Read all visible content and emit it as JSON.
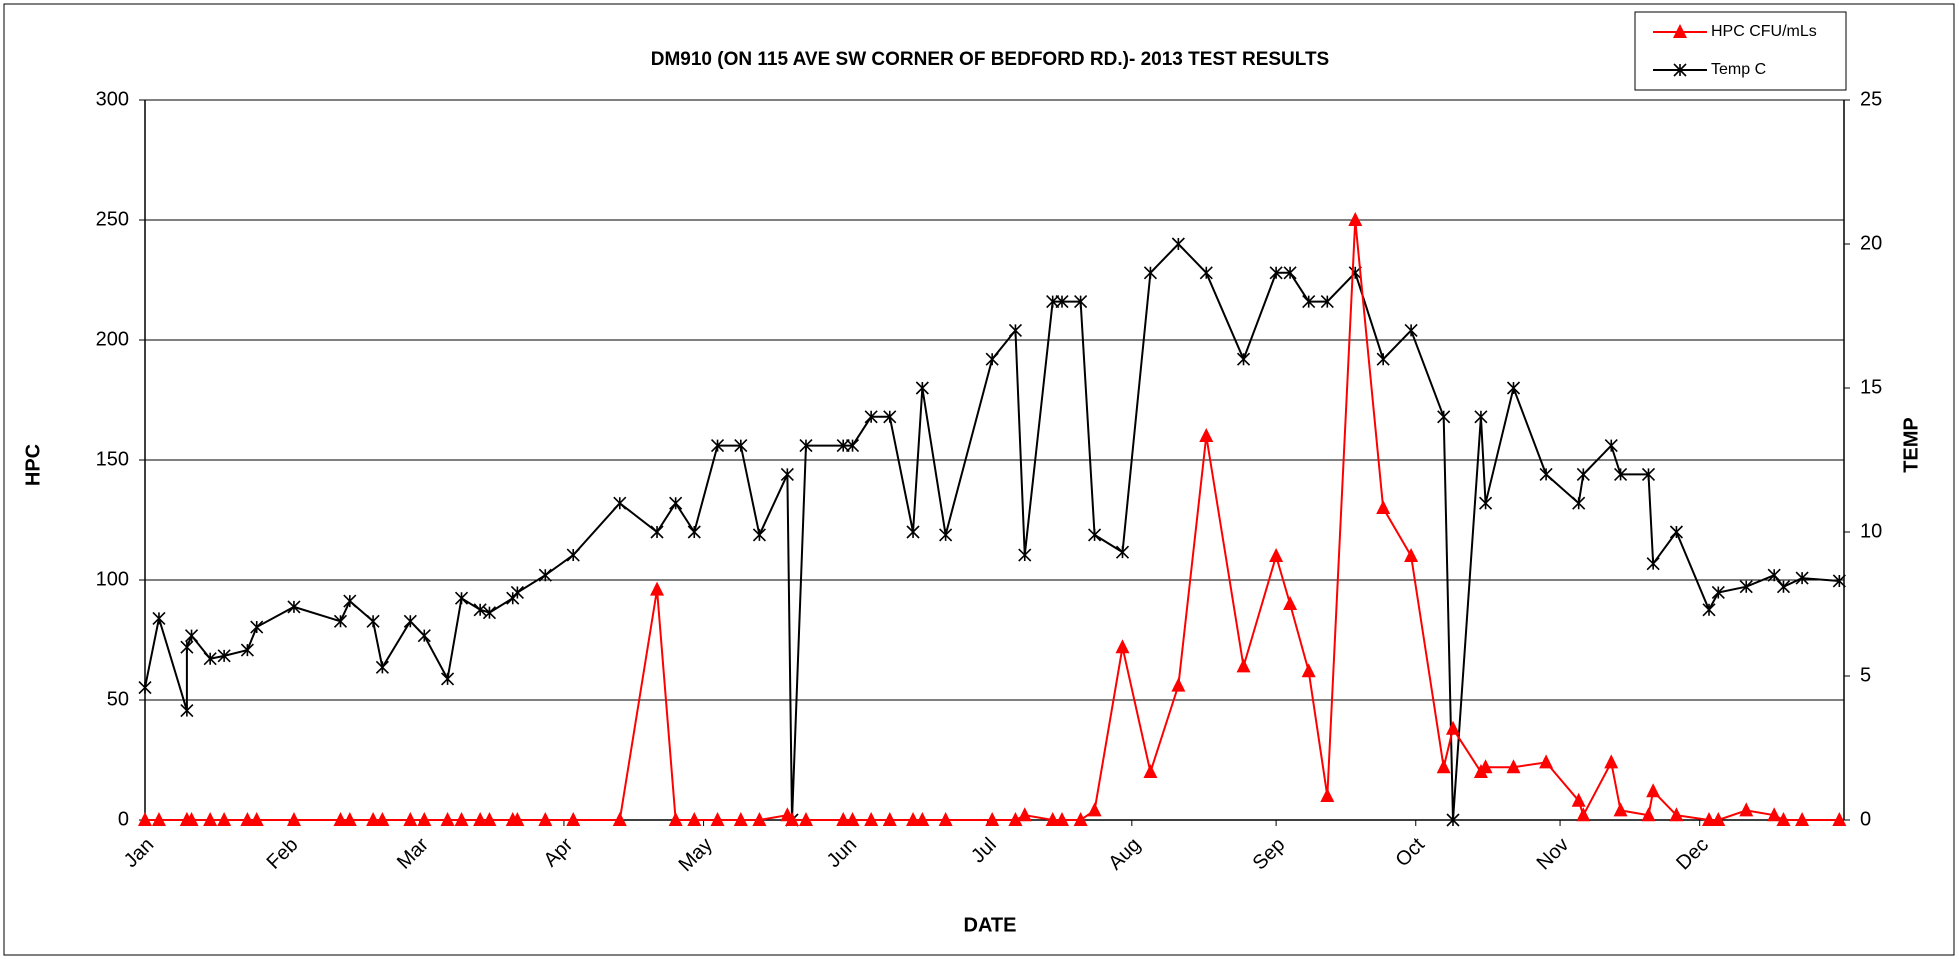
{
  "chart_data": {
    "type": "line",
    "title": "DM910 (ON 115 AVE SW CORNER OF BEDFORD RD.)- 2013 TEST RESULTS",
    "x_label": "DATE",
    "y_label": "HPC",
    "y2_label": "TEMP",
    "x": [
      1,
      4,
      10,
      10,
      11,
      15,
      18,
      23,
      25,
      33,
      43,
      45,
      50,
      52,
      58,
      61,
      66,
      69,
      73,
      75,
      80,
      81,
      87,
      93,
      103,
      111,
      115,
      119,
      124,
      129,
      133,
      139,
      140,
      143,
      151,
      153,
      157,
      161,
      166,
      168,
      173,
      183,
      188,
      190,
      196,
      198,
      202,
      205,
      211,
      217,
      223,
      229,
      237,
      244,
      247,
      251,
      255,
      261,
      267,
      273,
      280,
      282,
      288,
      289,
      295,
      302,
      309,
      310,
      316,
      318,
      324,
      325,
      330,
      337,
      339,
      345,
      351,
      353,
      357,
      365
    ],
    "xlim": [
      1,
      366
    ],
    "xticks": [
      {
        "value": 1,
        "label": "Jan"
      },
      {
        "value": 32,
        "label": "Feb"
      },
      {
        "value": 60,
        "label": "Mar"
      },
      {
        "value": 91,
        "label": "Apr"
      },
      {
        "value": 121,
        "label": "May"
      },
      {
        "value": 152,
        "label": "Jun"
      },
      {
        "value": 182,
        "label": "Jul"
      },
      {
        "value": 213,
        "label": "Aug"
      },
      {
        "value": 244,
        "label": "Sep"
      },
      {
        "value": 274,
        "label": "Oct"
      },
      {
        "value": 305,
        "label": "Nov"
      },
      {
        "value": 335,
        "label": "Dec"
      }
    ],
    "ylim": [
      0,
      300
    ],
    "yticks": [
      0,
      50,
      100,
      150,
      200,
      250,
      300
    ],
    "y2lim": [
      0,
      25
    ],
    "y2ticks": [
      0,
      5,
      10,
      15,
      20,
      25
    ],
    "grid": true,
    "legend": "upper right",
    "series": [
      {
        "name": "HPC CFU/mLs",
        "color": "#ff0000",
        "marker": "triangle",
        "values": [
          0,
          0,
          0,
          0,
          0,
          0,
          0,
          0,
          0,
          0,
          0,
          0,
          0,
          0,
          0,
          0,
          0,
          0,
          0,
          0,
          0,
          0,
          0,
          0,
          0,
          96,
          0,
          0,
          0,
          0,
          0,
          2,
          0,
          0,
          0,
          0,
          0,
          0,
          0,
          0,
          0,
          0,
          0,
          2,
          0,
          0,
          0,
          4,
          72,
          20,
          56,
          160,
          64,
          110,
          90,
          62,
          10,
          250,
          130,
          110,
          22,
          38,
          20,
          22,
          22,
          24,
          8,
          2,
          24,
          4,
          2,
          12,
          2,
          0,
          0,
          4,
          2,
          0,
          0,
          0
        ]
      },
      {
        "name": "Temp C",
        "color": "#000000",
        "marker": "star",
        "axis": "y2",
        "values": [
          4.6,
          7.0,
          3.8,
          6.0,
          6.4,
          5.6,
          5.7,
          5.9,
          6.7,
          7.4,
          6.9,
          7.6,
          6.9,
          5.3,
          6.9,
          6.4,
          4.9,
          7.7,
          7.3,
          7.2,
          7.7,
          7.9,
          8.5,
          9.2,
          11.0,
          10.0,
          11.0,
          10.0,
          13.0,
          13.0,
          9.9,
          12.0,
          0,
          13.0,
          13.0,
          13.0,
          14.0,
          14.0,
          10.0,
          15.0,
          9.9,
          16.0,
          17.0,
          9.2,
          18.0,
          18.0,
          18.0,
          9.9,
          9.3,
          19.0,
          20.0,
          19.0,
          16.0,
          19.0,
          19.0,
          18.0,
          18.0,
          19.0,
          16.0,
          17.0,
          14.0,
          0,
          14.0,
          11.0,
          15.0,
          12.0,
          11.0,
          12.0,
          13.0,
          12.0,
          12.0,
          8.9,
          10.0,
          7.3,
          7.9,
          8.1,
          8.5,
          8.1,
          8.4,
          8.3
        ]
      }
    ]
  }
}
